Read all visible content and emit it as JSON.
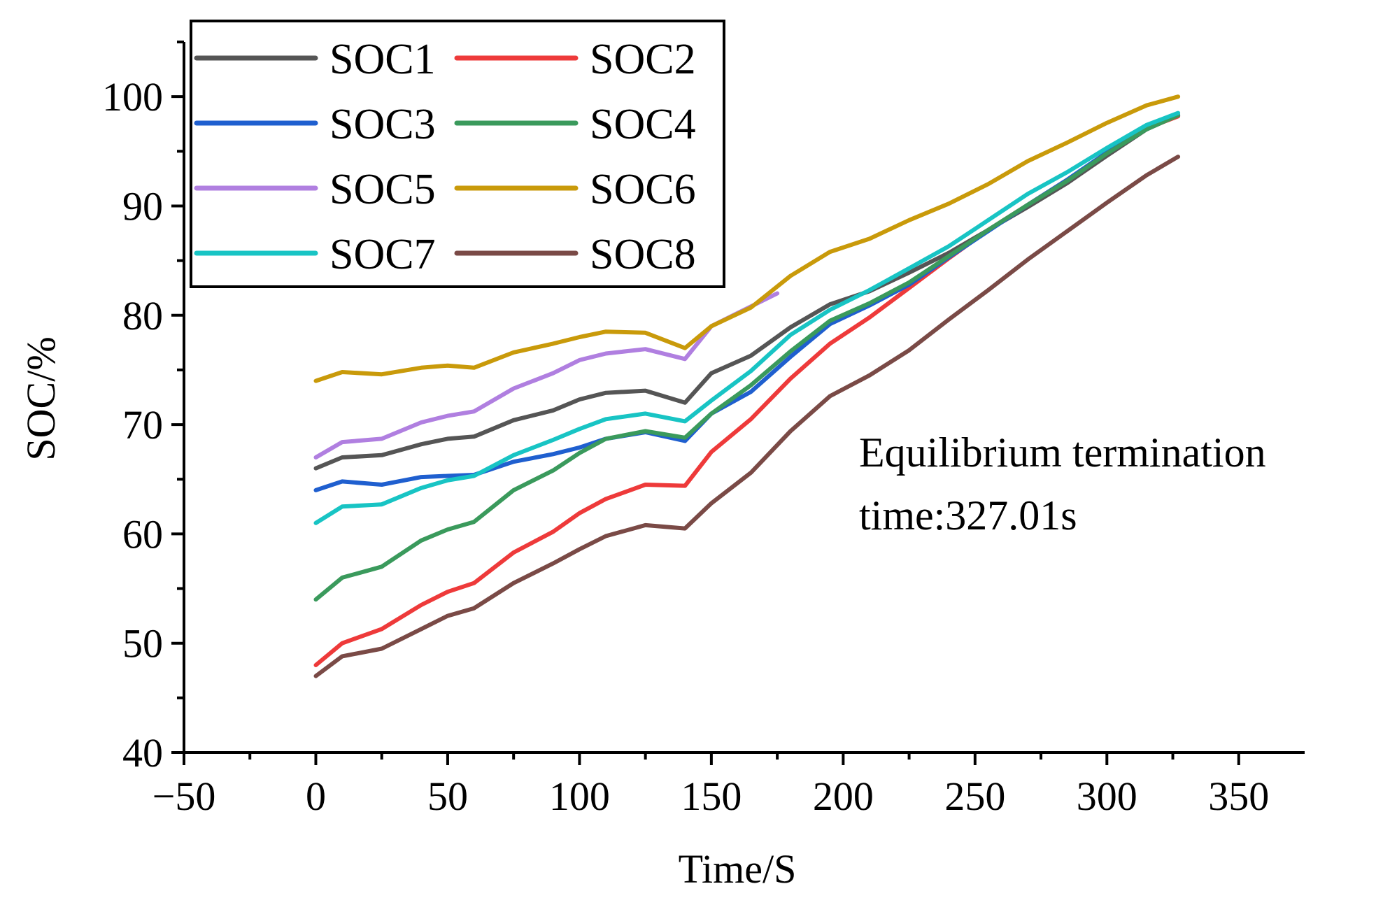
{
  "chart_data": {
    "type": "line",
    "title": "",
    "xlabel": "Time/S",
    "ylabel": "SOC/%",
    "xlim": [
      -50,
      375
    ],
    "ylim": [
      40,
      105
    ],
    "xticks": [
      -50,
      0,
      50,
      100,
      150,
      200,
      250,
      300,
      350
    ],
    "xtick_labels": [
      "−50",
      "0",
      "50",
      "100",
      "150",
      "200",
      "250",
      "300",
      "350"
    ],
    "yticks": [
      40,
      50,
      60,
      70,
      80,
      90,
      100
    ],
    "ytick_labels": [
      "40",
      "50",
      "60",
      "70",
      "80",
      "90",
      "100"
    ],
    "grid": false,
    "legend_position": "top-left",
    "annotation": [
      "Equilibrium termination",
      "time:327.01s"
    ],
    "series": [
      {
        "name": "SOC1",
        "color": "#555555",
        "x": [
          0,
          10,
          25,
          40,
          50,
          60,
          75,
          90,
          100,
          110,
          125,
          140,
          150,
          165,
          180,
          195,
          210,
          225,
          240,
          255,
          270,
          285,
          300,
          315,
          327
        ],
        "y": [
          66,
          67,
          67.2,
          68.2,
          68.7,
          68.9,
          70.4,
          71.3,
          72.3,
          72.9,
          73.1,
          72,
          74.7,
          76.3,
          78.9,
          81,
          82.2,
          83.9,
          85.7,
          87.8,
          89.9,
          92.1,
          94.6,
          97,
          98.3
        ]
      },
      {
        "name": "SOC2",
        "color": "#ee3a3a",
        "x": [
          0,
          10,
          25,
          40,
          50,
          60,
          75,
          90,
          100,
          110,
          125,
          140,
          150,
          165,
          180,
          195,
          210,
          225,
          240,
          255,
          270,
          285,
          300,
          315,
          327
        ],
        "y": [
          48,
          50,
          51.3,
          53.5,
          54.7,
          55.5,
          58.3,
          60.2,
          61.9,
          63.2,
          64.5,
          64.4,
          67.5,
          70.5,
          74.2,
          77.4,
          79.8,
          82.5,
          85.2,
          87.8,
          90.1,
          92.4,
          94.8,
          97.1,
          98.2
        ]
      },
      {
        "name": "SOC3",
        "color": "#1f5fcf",
        "x": [
          0,
          10,
          25,
          40,
          50,
          60,
          75,
          90,
          100,
          110,
          125,
          140,
          150,
          165,
          180,
          195,
          210,
          225,
          240,
          255,
          270,
          285,
          300,
          315,
          327
        ],
        "y": [
          64,
          64.8,
          64.5,
          65.2,
          65.3,
          65.4,
          66.6,
          67.3,
          67.9,
          68.7,
          69.3,
          68.5,
          71,
          73,
          76.2,
          79.2,
          80.9,
          82.8,
          85.3,
          87.7,
          90.1,
          92.4,
          94.9,
          97.1,
          98.3
        ]
      },
      {
        "name": "SOC4",
        "color": "#3a9a5c",
        "x": [
          0,
          10,
          25,
          40,
          50,
          60,
          75,
          90,
          100,
          110,
          125,
          140,
          150,
          165,
          180,
          195,
          210,
          225,
          240,
          255,
          270,
          285,
          300,
          315,
          327
        ],
        "y": [
          54,
          56,
          57,
          59.4,
          60.4,
          61.1,
          64,
          65.8,
          67.4,
          68.7,
          69.4,
          68.8,
          71,
          73.6,
          76.7,
          79.5,
          81.1,
          83,
          85.4,
          87.8,
          90.1,
          92.3,
          94.8,
          97,
          98.3
        ]
      },
      {
        "name": "SOC5",
        "color": "#b07fe0",
        "x": [
          0,
          10,
          25,
          40,
          50,
          60,
          75,
          90,
          100,
          110,
          125,
          140,
          150,
          160,
          175
        ],
        "y": [
          67,
          68.4,
          68.7,
          70.2,
          70.8,
          71.2,
          73.3,
          74.7,
          75.9,
          76.5,
          76.9,
          76,
          79,
          80.2,
          82
        ]
      },
      {
        "name": "SOC6",
        "color": "#c99a0a",
        "x": [
          0,
          10,
          25,
          40,
          50,
          60,
          75,
          90,
          100,
          110,
          125,
          140,
          150,
          165,
          180,
          195,
          210,
          225,
          240,
          255,
          270,
          285,
          300,
          315,
          327
        ],
        "y": [
          74,
          74.8,
          74.6,
          75.2,
          75.4,
          75.2,
          76.6,
          77.4,
          78,
          78.5,
          78.4,
          77,
          79,
          80.7,
          83.6,
          85.8,
          87,
          88.7,
          90.2,
          92,
          94.1,
          95.8,
          97.6,
          99.2,
          100
        ]
      },
      {
        "name": "SOC7",
        "color": "#18c4c4",
        "x": [
          0,
          10,
          25,
          40,
          50,
          60,
          75,
          90,
          100,
          110,
          125,
          140,
          150,
          165,
          180,
          195,
          210,
          225,
          240,
          255,
          270,
          285,
          300,
          315,
          327
        ],
        "y": [
          61,
          62.5,
          62.7,
          64.2,
          64.9,
          65.3,
          67.2,
          68.6,
          69.6,
          70.5,
          71,
          70.3,
          72.2,
          74.9,
          78.2,
          80.5,
          82.3,
          84.3,
          86.3,
          88.7,
          91.1,
          93.1,
          95.3,
          97.4,
          98.5
        ]
      },
      {
        "name": "SOC8",
        "color": "#7a4a46",
        "x": [
          0,
          10,
          25,
          40,
          50,
          60,
          75,
          90,
          100,
          110,
          125,
          140,
          150,
          165,
          180,
          195,
          210,
          225,
          240,
          255,
          270,
          285,
          300,
          315,
          327
        ],
        "y": [
          47,
          48.8,
          49.5,
          51.3,
          52.5,
          53.2,
          55.5,
          57.3,
          58.6,
          59.8,
          60.8,
          60.5,
          62.8,
          65.6,
          69.4,
          72.6,
          74.5,
          76.8,
          79.6,
          82.3,
          85.1,
          87.7,
          90.3,
          92.8,
          94.5
        ]
      }
    ]
  }
}
